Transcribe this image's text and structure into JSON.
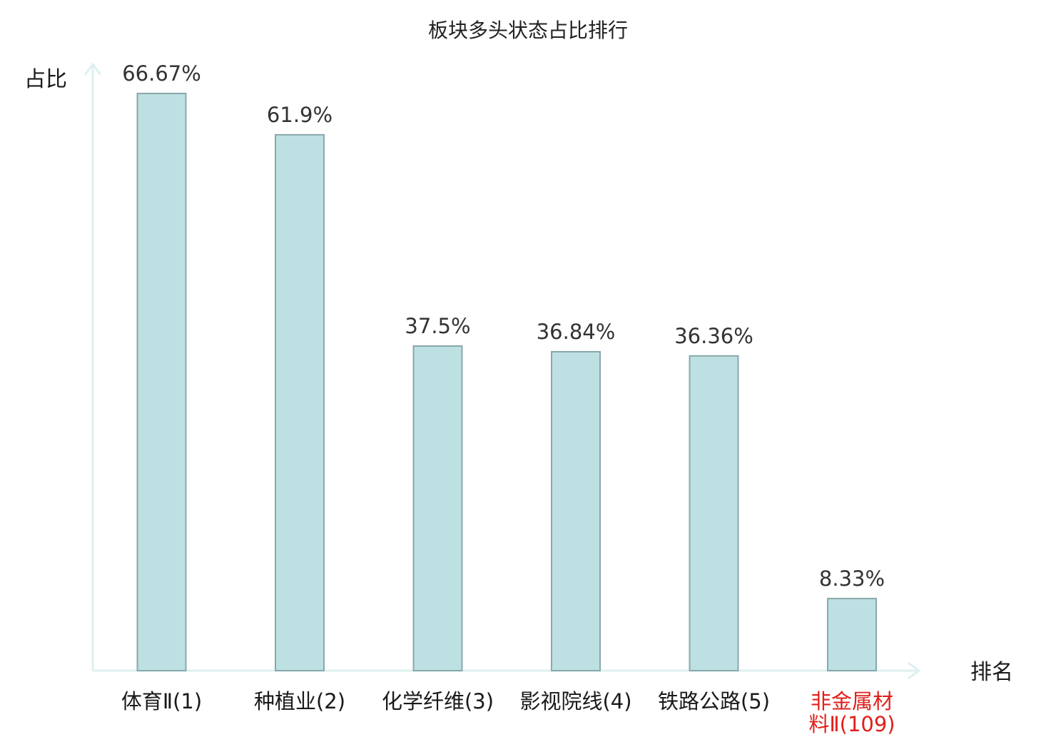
{
  "chart_data": {
    "type": "bar",
    "title": "板块多头状态占比排行",
    "xlabel": "排名",
    "ylabel": "占比",
    "categories": [
      {
        "lines": [
          "体育Ⅱ(1)"
        ],
        "highlight": false
      },
      {
        "lines": [
          "种植业(2)"
        ],
        "highlight": false
      },
      {
        "lines": [
          "化学纤维(3)"
        ],
        "highlight": false
      },
      {
        "lines": [
          "影视院线(4)"
        ],
        "highlight": false
      },
      {
        "lines": [
          "铁路公路(5)"
        ],
        "highlight": false
      },
      {
        "lines": [
          "非金属材",
          "料Ⅱ(109)"
        ],
        "highlight": true
      }
    ],
    "values": [
      66.67,
      61.9,
      37.5,
      36.84,
      36.36,
      8.33
    ],
    "value_labels": [
      "66.67%",
      "61.9%",
      "37.5%",
      "36.84%",
      "36.36%",
      "8.33%"
    ],
    "ylim": [
      0,
      70
    ],
    "grid": false,
    "legend": "none",
    "colors": {
      "bar_fill": "#bde0e3",
      "bar_stroke": "#8aa8ab",
      "axis": "#ddf1ef",
      "label": "#1a1a1a",
      "highlight": "#e0201b"
    }
  }
}
